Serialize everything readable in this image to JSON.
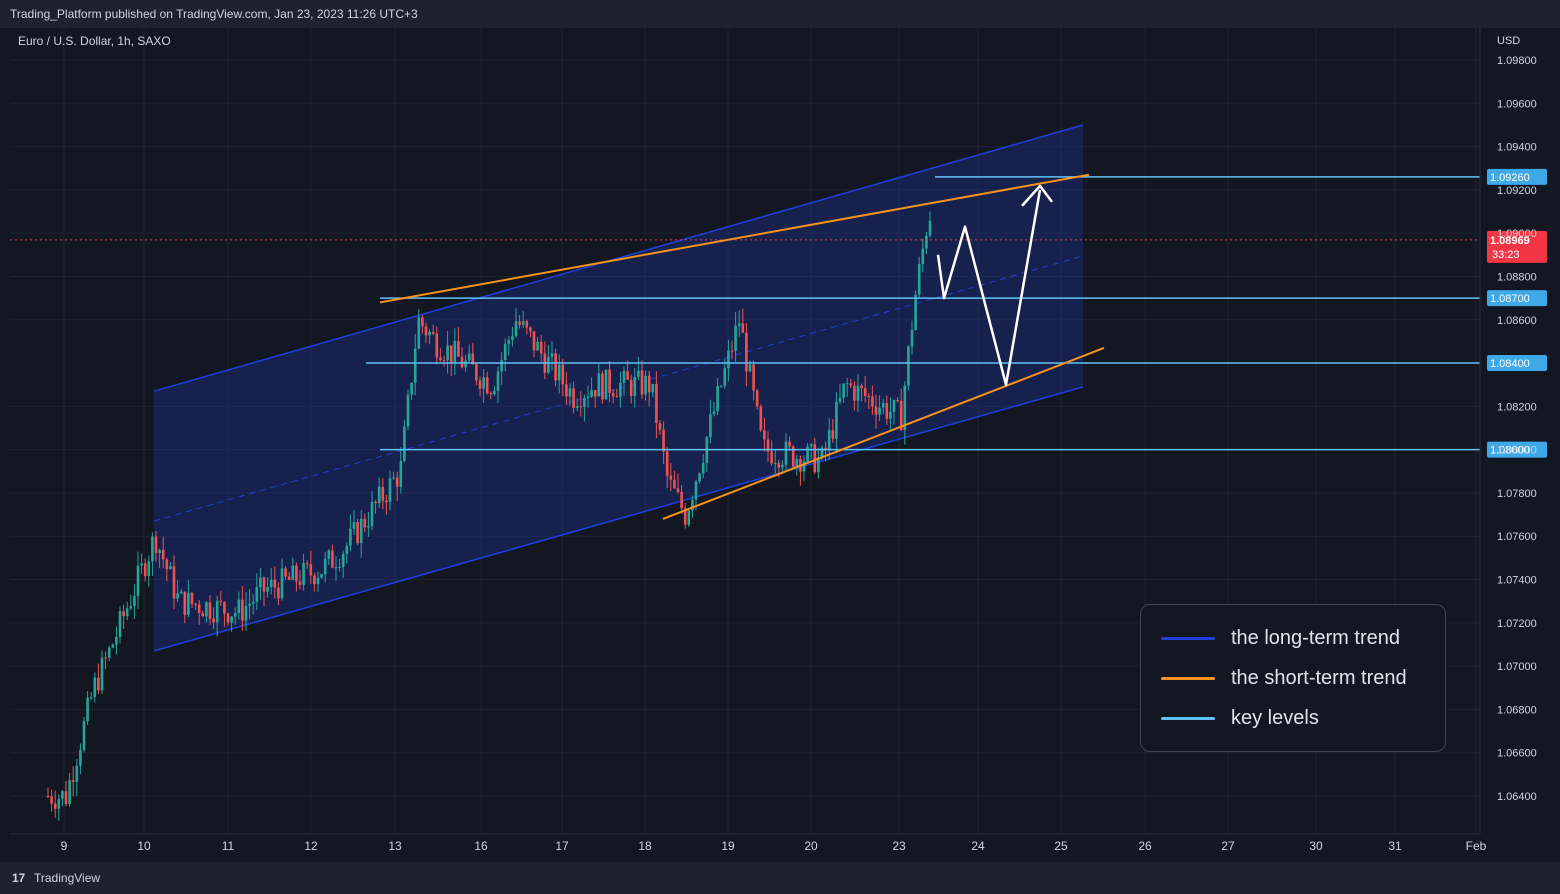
{
  "header": {
    "publish_text": "Trading_Platform published on TradingView.com, Jan 23, 2023 11:26 UTC+3",
    "symbol_text": "Euro / U.S. Dollar, 1h, SAXO"
  },
  "footer": {
    "logo_glyph": "17",
    "brand": "TradingView"
  },
  "colors": {
    "background": "#131722",
    "up_candle": "#26a69a",
    "down_candle": "#ef5350",
    "long_term": "#1f3fdc",
    "short_term": "#f7931a",
    "key_level": "#5fc2f6",
    "last_price": "#f23645"
  },
  "chart_data": {
    "type": "candlestick",
    "symbol": "Euro / U.S. Dollar",
    "interval": "1h",
    "exchange": "SAXO",
    "currency_label": "USD",
    "ylim": [
      1.062,
      1.0995
    ],
    "y_ticks": [
      "1.06400",
      "1.06600",
      "1.06800",
      "1.07000",
      "1.07200",
      "1.07400",
      "1.07600",
      "1.07800",
      "1.08000",
      "1.08200",
      "1.08600",
      "1.08800",
      "1.09000",
      "1.09200",
      "1.09400",
      "1.09600",
      "1.09800"
    ],
    "x_ticks": [
      "9",
      "10",
      "11",
      "12",
      "13",
      "16",
      "17",
      "18",
      "19",
      "20",
      "23",
      "24",
      "25",
      "26",
      "27",
      "30",
      "31",
      "Feb"
    ],
    "grid": true,
    "ohlc_points": [
      {
        "date": "9",
        "price": 1.064
      },
      {
        "date": "9",
        "price": 1.0665
      },
      {
        "date": "9",
        "price": 1.069
      },
      {
        "date": "9",
        "price": 1.0705
      },
      {
        "date": "10",
        "price": 1.076
      },
      {
        "date": "10",
        "price": 1.073
      },
      {
        "date": "11",
        "price": 1.0725
      },
      {
        "date": "11",
        "price": 1.0735
      },
      {
        "date": "12",
        "price": 1.0745
      },
      {
        "date": "12",
        "price": 1.0755
      },
      {
        "date": "13",
        "price": 1.079
      },
      {
        "date": "13",
        "price": 1.086
      },
      {
        "date": "13",
        "price": 1.085
      },
      {
        "date": "16",
        "price": 1.083
      },
      {
        "date": "16",
        "price": 1.086
      },
      {
        "date": "17",
        "price": 1.0825
      },
      {
        "date": "17",
        "price": 1.083
      },
      {
        "date": "18",
        "price": 1.083
      },
      {
        "date": "18",
        "price": 1.0785
      },
      {
        "date": "18",
        "price": 1.077
      },
      {
        "date": "19",
        "price": 1.086
      },
      {
        "date": "19",
        "price": 1.08
      },
      {
        "date": "20",
        "price": 1.0795
      },
      {
        "date": "20",
        "price": 1.083
      },
      {
        "date": "23",
        "price": 1.0815
      },
      {
        "date": "23",
        "price": 1.087
      },
      {
        "date": "23",
        "price": 1.091
      },
      {
        "date": "23",
        "price": 1.0897
      }
    ],
    "last_price": {
      "value": "1.08969",
      "countdown": "33:23"
    },
    "key_levels": [
      {
        "label": "1.09260",
        "value": 1.0926
      },
      {
        "label": "1.08700",
        "value": 1.087
      },
      {
        "label": "1.08400",
        "value": 1.084
      },
      {
        "label": "1.08000",
        "value": 1.08
      }
    ],
    "long_term_channel": {
      "upper": [
        {
          "date": "10",
          "price": 1.0827
        },
        {
          "date": "25",
          "price": 1.095
        }
      ],
      "lower": [
        {
          "date": "10",
          "price": 1.0707
        },
        {
          "date": "25",
          "price": 1.0829
        }
      ]
    },
    "short_term_trend": {
      "upper": [
        {
          "date": "13",
          "price": 1.0868
        },
        {
          "date": "25",
          "price": 1.0927
        }
      ],
      "lower": [
        {
          "date": "18",
          "price": 1.0768
        },
        {
          "date": "25",
          "price": 1.0847
        }
      ]
    },
    "projection_path": [
      {
        "date": "23",
        "price": 1.089
      },
      {
        "date": "23",
        "price": 1.087
      },
      {
        "date": "24",
        "price": 1.0903
      },
      {
        "date": "24",
        "price": 1.083
      },
      {
        "date": "25",
        "price": 1.092
      }
    ],
    "legend_entries": [
      {
        "label": "the long-term trend",
        "color": "#1f3fdc"
      },
      {
        "label": "the short-term trend",
        "color": "#f7931a"
      },
      {
        "label": "key levels",
        "color": "#5fc2f6"
      }
    ]
  }
}
